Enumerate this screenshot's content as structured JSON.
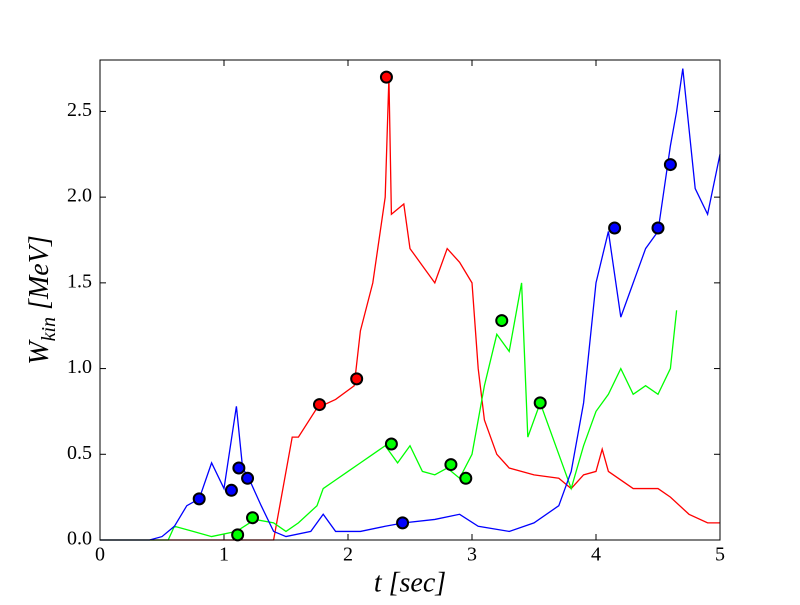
{
  "chart_data": {
    "type": "line",
    "xlabel": "t [sec]",
    "ylabel": [
      "W",
      "kin",
      " [MeV]"
    ],
    "xlim": [
      0,
      5
    ],
    "ylim": [
      0,
      2.8
    ],
    "xticks": [
      0,
      1,
      2,
      3,
      4,
      5
    ],
    "yticks": [
      {
        "value": 0,
        "label": "0.0"
      },
      0.5,
      {
        "value": 1,
        "label": "1.0"
      },
      1.5,
      {
        "value": 2,
        "label": "2.0"
      },
      2.5
    ],
    "series": [
      {
        "color": "#ff0000",
        "x": [
          0,
          1.4,
          1.45,
          1.55,
          1.6,
          1.75,
          1.9,
          2.05,
          2.1,
          2.2,
          2.25,
          2.3,
          2.33,
          2.35,
          2.45,
          2.5,
          2.6,
          2.7,
          2.8,
          2.9,
          3.0,
          3.05,
          3.1,
          3.2,
          3.3,
          3.5,
          3.7,
          3.8,
          3.9,
          4.0,
          4.05,
          4.1,
          4.3,
          4.5,
          4.6,
          4.75,
          4.9,
          5.0
        ],
        "values": [
          0,
          0,
          0.2,
          0.6,
          0.6,
          0.77,
          0.82,
          0.9,
          1.22,
          1.5,
          1.75,
          2.0,
          2.7,
          1.9,
          1.96,
          1.7,
          1.6,
          1.5,
          1.7,
          1.62,
          1.5,
          1.0,
          0.7,
          0.5,
          0.42,
          0.38,
          0.36,
          0.3,
          0.38,
          0.4,
          0.53,
          0.4,
          0.3,
          0.3,
          0.25,
          0.15,
          0.1,
          0.1
        ],
        "markers": {
          "x": [
            1.77,
            2.07,
            2.31
          ],
          "values": [
            0.79,
            0.94,
            2.7
          ]
        }
      },
      {
        "color": "#00ff00",
        "x": [
          0,
          0.55,
          0.6,
          0.75,
          0.9,
          1.1,
          1.25,
          1.4,
          1.5,
          1.6,
          1.75,
          1.8,
          1.9,
          2.0,
          2.1,
          2.2,
          2.3,
          2.4,
          2.5,
          2.6,
          2.7,
          2.8,
          2.9,
          3.0,
          3.1,
          3.2,
          3.3,
          3.4,
          3.45,
          3.55,
          3.7,
          3.8,
          3.9,
          4.0,
          4.1,
          4.2,
          4.3,
          4.4,
          4.5,
          4.6,
          4.65
        ],
        "values": [
          0,
          0,
          0.08,
          0.05,
          0.02,
          0.05,
          0.12,
          0.1,
          0.05,
          0.1,
          0.2,
          0.3,
          0.35,
          0.4,
          0.45,
          0.5,
          0.55,
          0.45,
          0.55,
          0.4,
          0.38,
          0.42,
          0.36,
          0.5,
          0.9,
          1.2,
          1.1,
          1.5,
          0.6,
          0.8,
          0.5,
          0.3,
          0.55,
          0.75,
          0.85,
          1.0,
          0.85,
          0.9,
          0.85,
          1.0,
          1.34
        ],
        "markers": {
          "x": [
            1.11,
            1.23,
            2.35,
            2.83,
            2.95,
            3.24,
            3.55
          ],
          "values": [
            0.03,
            0.13,
            0.56,
            0.44,
            0.36,
            1.28,
            0.8
          ]
        }
      },
      {
        "color": "#0000ff",
        "x": [
          0,
          0.4,
          0.5,
          0.6,
          0.7,
          0.8,
          0.9,
          1.0,
          1.1,
          1.15,
          1.2,
          1.3,
          1.4,
          1.5,
          1.7,
          1.8,
          1.9,
          2.1,
          2.3,
          2.45,
          2.7,
          2.9,
          3.05,
          3.3,
          3.5,
          3.7,
          3.8,
          3.9,
          4.0,
          4.1,
          4.2,
          4.3,
          4.4,
          4.5,
          4.6,
          4.65,
          4.7,
          4.8,
          4.9,
          5.0
        ],
        "values": [
          0,
          0,
          0.02,
          0.08,
          0.2,
          0.24,
          0.45,
          0.3,
          0.78,
          0.42,
          0.36,
          0.2,
          0.05,
          0.02,
          0.05,
          0.15,
          0.05,
          0.05,
          0.08,
          0.1,
          0.12,
          0.15,
          0.08,
          0.05,
          0.1,
          0.2,
          0.4,
          0.8,
          1.5,
          1.8,
          1.3,
          1.5,
          1.7,
          1.8,
          2.3,
          2.5,
          2.75,
          2.05,
          1.9,
          2.25
        ],
        "markers": {
          "x": [
            0.8,
            1.06,
            1.12,
            1.19,
            2.44,
            4.15,
            4.5,
            4.6
          ],
          "values": [
            0.24,
            0.29,
            0.42,
            0.36,
            0.1,
            1.82,
            1.82,
            2.19
          ]
        }
      }
    ]
  }
}
